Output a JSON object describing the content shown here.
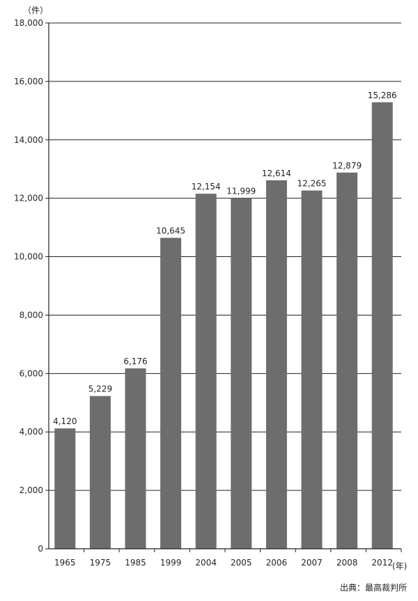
{
  "chart_data": {
    "type": "bar",
    "categories": [
      "1965",
      "1975",
      "1985",
      "1999",
      "2004",
      "2005",
      "2006",
      "2007",
      "2008",
      "2012"
    ],
    "values": [
      4120,
      5229,
      6176,
      10645,
      12154,
      11999,
      12614,
      12265,
      12879,
      15286
    ],
    "value_labels": [
      "4,120",
      "5,229",
      "6,176",
      "10,645",
      "12,154",
      "11,999",
      "12,614",
      "12,265",
      "12,879",
      "15,286"
    ],
    "y_ticks": [
      0,
      2000,
      4000,
      6000,
      8000,
      10000,
      12000,
      14000,
      16000,
      18000
    ],
    "y_tick_labels": [
      "0",
      "2,000",
      "4,000",
      "6,000",
      "8,000",
      "10,000",
      "12,000",
      "14,000",
      "16,000",
      "18,000"
    ],
    "ylim": [
      0,
      18000
    ],
    "y_unit": "（件）",
    "x_unit": "(年)",
    "grid": true,
    "bar_color": "#6d6d6d",
    "axis_color": "#231f20"
  },
  "source": "出典：最高裁判所"
}
